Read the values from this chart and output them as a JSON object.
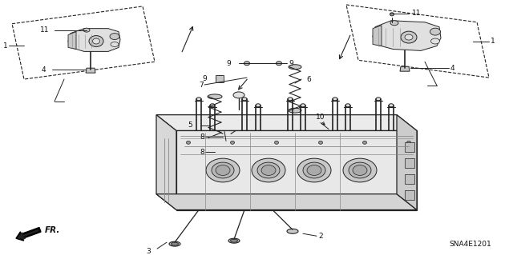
{
  "background_color": "#ffffff",
  "diagram_code": "SNA4E1201",
  "fr_label": "FR.",
  "line_color": "#222222",
  "text_color": "#111111",
  "label_fontsize": 6.5,
  "diagram_fontsize": 6.0,
  "gray_fill": "#c8c8c8",
  "light_gray": "#e0e0e0",
  "dark_gray": "#888888"
}
